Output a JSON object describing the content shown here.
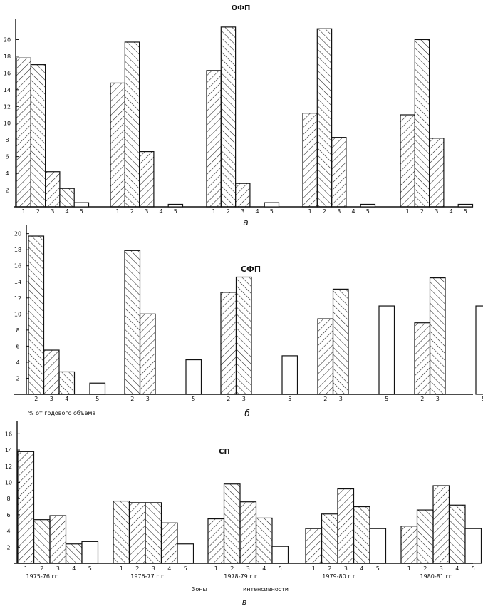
{
  "figure": {
    "ylabel_shared": "% от годового объема",
    "xlabel_left": "Зоны",
    "xlabel_right": "интенсивности",
    "periods": [
      "1975-76 гг.",
      "1976-77 г.г.",
      "1978-79 г.г.",
      "1979-80 г.г.",
      "1980-81 гг."
    ]
  },
  "chart_data": [
    {
      "type": "bar",
      "title": "ОФП",
      "panel_label": "а",
      "ylim": [
        0,
        22
      ],
      "yticks": [
        "2",
        "4",
        "6",
        "8",
        "10",
        "12",
        "14",
        "16",
        "18",
        "20"
      ],
      "groups": [
        {
          "categories": [
            "1",
            "2",
            "3",
            "4",
            "5"
          ],
          "values": [
            17.8,
            17.0,
            4.2,
            2.2,
            0.5
          ],
          "hatch": [
            "left",
            "right",
            "left",
            "right",
            "none"
          ]
        },
        {
          "categories": [
            "1",
            "2",
            "3",
            "4",
            "5"
          ],
          "values": [
            14.8,
            19.7,
            6.6,
            0,
            0.3
          ],
          "hatch": [
            "left",
            "right",
            "left",
            "none",
            "none"
          ]
        },
        {
          "categories": [
            "1",
            "2",
            "3",
            "4",
            "5"
          ],
          "values": [
            16.3,
            21.5,
            2.8,
            0,
            0.5
          ],
          "hatch": [
            "left",
            "right",
            "left",
            "none",
            "none"
          ]
        },
        {
          "categories": [
            "1",
            "2",
            "3",
            "4",
            "5"
          ],
          "values": [
            11.2,
            21.3,
            8.3,
            0,
            0.3
          ],
          "hatch": [
            "left",
            "right",
            "left",
            "none",
            "none"
          ]
        },
        {
          "categories": [
            "1",
            "2",
            "3",
            "4",
            "5"
          ],
          "values": [
            11.0,
            20.0,
            8.2,
            0,
            0.3
          ],
          "hatch": [
            "left",
            "right",
            "left",
            "none",
            "none"
          ]
        }
      ]
    },
    {
      "type": "bar",
      "title": "СФП",
      "panel_label": "б",
      "ylim": [
        0,
        20.5
      ],
      "yticks": [
        "2",
        "4",
        "6",
        "8",
        "10",
        "12",
        "14",
        "16",
        "18",
        "20"
      ],
      "groups": [
        {
          "categories": [
            "2",
            "3",
            "4",
            "5"
          ],
          "values": [
            19.7,
            5.5,
            2.8,
            1.4
          ],
          "hatch": [
            "right",
            "left",
            "right",
            "none"
          ]
        },
        {
          "categories": [
            "2",
            "3",
            "5"
          ],
          "values": [
            17.9,
            10.0,
            4.3
          ],
          "hatch": [
            "right",
            "left",
            "none"
          ]
        },
        {
          "categories": [
            "2",
            "3",
            "5"
          ],
          "values": [
            12.7,
            14.6,
            4.8
          ],
          "hatch": [
            "left",
            "right",
            "none"
          ]
        },
        {
          "categories": [
            "2",
            "3",
            "5"
          ],
          "values": [
            9.4,
            13.1,
            11.0
          ],
          "hatch": [
            "left",
            "right",
            "none"
          ]
        },
        {
          "categories": [
            "2",
            "3",
            "5"
          ],
          "values": [
            8.9,
            14.5,
            11.0
          ],
          "hatch": [
            "left",
            "right",
            "none"
          ]
        }
      ]
    },
    {
      "type": "bar",
      "title": "СП",
      "panel_label": "в",
      "ylim": [
        0,
        17
      ],
      "yticks": [
        "2",
        "4",
        "6",
        "8",
        "10",
        "12",
        "14",
        "16"
      ],
      "groups": [
        {
          "categories": [
            "1",
            "2",
            "3",
            "4",
            "5"
          ],
          "values": [
            13.8,
            5.4,
            5.9,
            2.4,
            2.7
          ],
          "hatch": [
            "left",
            "right",
            "left",
            "right",
            "none"
          ]
        },
        {
          "categories": [
            "1",
            "2",
            "3",
            "4",
            "5"
          ],
          "values": [
            7.7,
            7.5,
            7.5,
            5.0,
            2.4
          ],
          "hatch": [
            "right",
            "left",
            "right",
            "left",
            "none"
          ]
        },
        {
          "categories": [
            "1",
            "2",
            "3",
            "4",
            "5"
          ],
          "values": [
            5.5,
            9.8,
            7.6,
            5.6,
            2.1
          ],
          "hatch": [
            "left",
            "right",
            "left",
            "right",
            "none"
          ]
        },
        {
          "categories": [
            "1",
            "2",
            "3",
            "4",
            "5"
          ],
          "values": [
            4.3,
            6.1,
            9.2,
            7.0,
            4.3
          ],
          "hatch": [
            "left",
            "right",
            "left",
            "right",
            "none"
          ]
        },
        {
          "categories": [
            "1",
            "2",
            "3",
            "4",
            "5"
          ],
          "values": [
            4.6,
            6.6,
            9.6,
            7.2,
            4.3
          ],
          "hatch": [
            "left",
            "right",
            "left",
            "right",
            "none"
          ]
        }
      ]
    }
  ]
}
